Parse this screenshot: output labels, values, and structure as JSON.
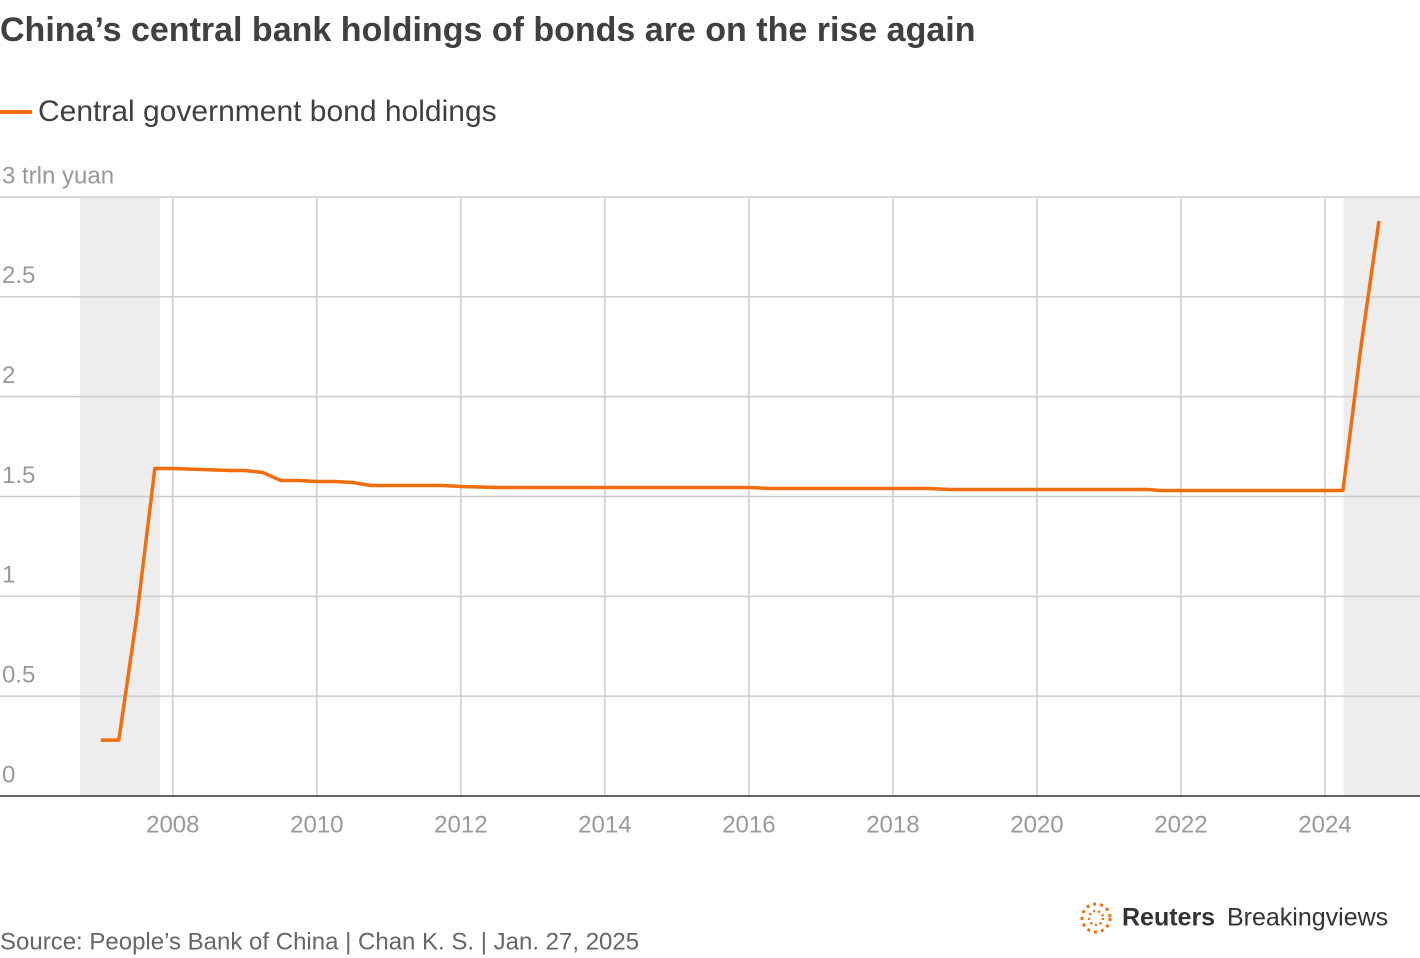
{
  "chart_data": {
    "type": "line",
    "title": "China’s central bank holdings of bonds are on the rise again",
    "x": [
      2007.0,
      2007.25,
      2007.5,
      2007.75,
      2008.0,
      2008.8,
      2009.0,
      2009.25,
      2009.5,
      2009.75,
      2010.0,
      2010.25,
      2010.5,
      2010.75,
      2011.15,
      2011.75,
      2012.0,
      2012.5,
      2016.0,
      2016.3,
      2018.5,
      2018.8,
      2021.55,
      2021.7,
      2024.25,
      2024.5,
      2024.75
    ],
    "series": [
      {
        "name": "Central government bond holdings",
        "color": "#f26d0d",
        "values": [
          0.28,
          0.28,
          0.9,
          1.64,
          1.64,
          1.63,
          1.63,
          1.62,
          1.58,
          1.58,
          1.575,
          1.575,
          1.57,
          1.555,
          1.555,
          1.555,
          1.55,
          1.545,
          1.545,
          1.54,
          1.54,
          1.535,
          1.535,
          1.53,
          1.53,
          2.25,
          2.88
        ]
      }
    ],
    "shaded_ranges": [
      [
        2006.71,
        2007.82
      ],
      [
        2024.26,
        2025.32
      ]
    ],
    "xlim": [
      2005.6,
      2025.32
    ],
    "xticks": [
      2008,
      2010,
      2012,
      2014,
      2016,
      2018,
      2020,
      2022,
      2024
    ],
    "ylim": [
      0,
      3
    ],
    "yticks": [
      0,
      0.5,
      1,
      1.5,
      2,
      2.5,
      {
        "value": 3,
        "label": "3 trln yuan"
      }
    ],
    "grid": true,
    "source": "Source: People’s Bank of China | Chan K. S. | Jan. 27, 2025",
    "brand": {
      "bold": "Reuters",
      "regular": "Breakingviews"
    }
  }
}
